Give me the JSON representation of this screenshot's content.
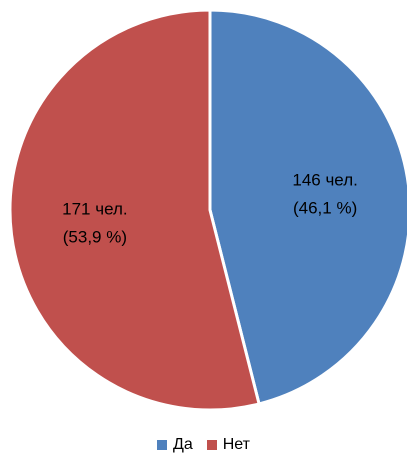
{
  "chart_data": {
    "type": "pie",
    "title": "",
    "slices": [
      {
        "name": "Да",
        "value": 146,
        "percent": 46.1,
        "label_line1": "146 чел.",
        "label_line2": "(46,1 %)",
        "color": "#4F81BD"
      },
      {
        "name": "Нет",
        "value": 171,
        "percent": 53.9,
        "label_line1": "171 чел.",
        "label_line2": "(53,9 %)",
        "color": "#C0504D"
      }
    ],
    "start_angle": "12 o'clock",
    "direction": "clockwise",
    "legend_position": "bottom"
  },
  "legend": [
    {
      "label": "Да",
      "color": "#4F81BD"
    },
    {
      "label": "Нет",
      "color": "#C0504D"
    }
  ]
}
